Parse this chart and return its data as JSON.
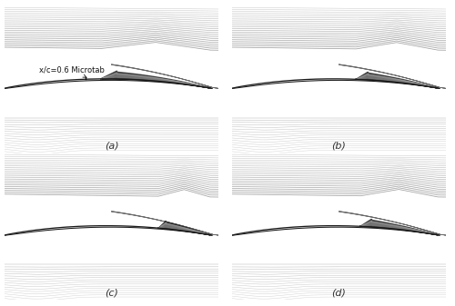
{
  "figure_width": 5.0,
  "figure_height": 3.37,
  "dpi": 100,
  "bg_color": "#ffffff",
  "panel_labels": [
    "(a)",
    "(b)",
    "(c)",
    "(d)"
  ],
  "label_fontsize": 8,
  "label_style": "italic",
  "annotation_text": "x/c=0.6 Microtab",
  "annotation_fontsize": 6.0,
  "n_upper_freestream": 22,
  "n_lower_freestream": 16,
  "airfoil_lw": 0.9,
  "separation_lw": 0.7
}
